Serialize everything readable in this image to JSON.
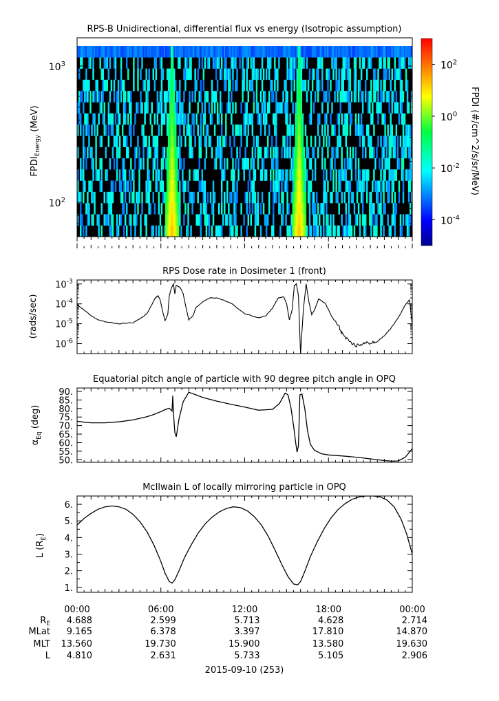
{
  "chart_data": [
    {
      "type": "heatmap",
      "title": "RPS-B  Unidirectional, differential flux vs energy (Isotropic assumption)",
      "ylabel": "FPDI",
      "ylabel_sub": "Energy",
      "ylabel_unit": "(MeV)",
      "yscale": "log",
      "ylim": [
        56,
        1400
      ],
      "yticks": [
        {
          "value": 100,
          "label": "10",
          "exp": "2"
        },
        {
          "value": 1000,
          "label": "10",
          "exp": "3"
        }
      ],
      "xlim": [
        0,
        24
      ],
      "colorbar": {
        "label": "FPDI (#/cm^2/s/sr/MeV)",
        "scale": "log",
        "range": [
          -5,
          3
        ],
        "ticks": [
          {
            "value": 2,
            "label": "10",
            "exp": "2"
          },
          {
            "value": 0,
            "label": "10",
            "exp": "0"
          },
          {
            "value": -2,
            "label": "10",
            "exp": "-2"
          },
          {
            "value": -4,
            "label": "10",
            "exp": "-4"
          }
        ]
      },
      "features": [
        {
          "x_center": 6.8,
          "peak_log_flux": 1.5
        },
        {
          "x_center": 15.9,
          "peak_log_flux": 1.5
        }
      ]
    },
    {
      "type": "line",
      "title": "RPS  Dose rate in Dosimeter 1 (front)",
      "ylabel": "(rads/sec)",
      "yscale": "log",
      "ylim": [
        -6.5,
        -2.8
      ],
      "xlim": [
        0,
        24
      ],
      "yticks": [
        {
          "value": -3,
          "label": "10",
          "exp": "-3"
        },
        {
          "value": -4,
          "label": "10",
          "exp": "-4"
        },
        {
          "value": -5,
          "label": "10",
          "exp": "-5"
        },
        {
          "value": -6,
          "label": "10",
          "exp": "-6"
        }
      ],
      "series": [
        {
          "x": [
            0,
            0.5,
            1,
            1.5,
            2,
            3,
            4,
            4.5,
            5,
            5.3,
            5.6,
            5.8,
            5.95,
            6.1,
            6.3,
            6.5,
            6.6,
            6.75,
            6.9,
            7.0,
            7.1,
            7.4,
            7.6,
            7.8,
            8.0,
            8.3,
            8.5,
            9,
            9.5,
            10,
            11,
            12,
            13,
            13.5,
            14,
            14.4,
            14.8,
            15.0,
            15.2,
            15.4,
            15.55,
            15.7,
            15.85,
            16.0,
            16.2,
            16.4,
            16.6,
            16.8,
            17.0,
            17.3,
            17.8,
            18.2,
            18.7,
            19.0,
            19.5,
            20,
            20.5,
            21,
            21.5,
            22,
            22.5,
            23,
            23.5,
            23.8,
            24
          ],
          "y": [
            -4.05,
            -4.3,
            -4.6,
            -4.8,
            -4.9,
            -5.0,
            -4.95,
            -4.75,
            -4.5,
            -4.1,
            -3.7,
            -3.6,
            -3.8,
            -4.3,
            -4.85,
            -4.5,
            -3.6,
            -3.2,
            -3.0,
            -3.5,
            -3.05,
            -3.2,
            -3.5,
            -4.2,
            -4.8,
            -4.6,
            -4.2,
            -3.9,
            -3.7,
            -3.7,
            -3.95,
            -4.5,
            -4.7,
            -4.6,
            -4.2,
            -3.7,
            -3.65,
            -4.0,
            -4.8,
            -4.3,
            -3.1,
            -3.0,
            -3.6,
            -6.5,
            -4.3,
            -3.0,
            -3.9,
            -4.55,
            -4.3,
            -3.75,
            -4.0,
            -4.6,
            -5.1,
            -5.5,
            -5.95,
            -6.1,
            -6.0,
            -5.95,
            -5.9,
            -5.6,
            -5.2,
            -4.7,
            -4.05,
            -3.8,
            -5.05
          ]
        }
      ]
    },
    {
      "type": "line",
      "title": "Equatorial pitch angle of particle with 90 degree pitch angle in OPQ",
      "ylabel": "α",
      "ylabel_sub": "Eq",
      "ylabel_unit": "(deg)",
      "ylim": [
        48.5,
        92
      ],
      "xlim": [
        0,
        24
      ],
      "yticks": [
        50,
        55,
        60,
        65,
        70,
        75,
        80,
        85,
        90
      ],
      "ytick_labels": [
        "50.",
        "55.",
        "60.",
        "65.",
        "70.",
        "75.",
        "80.",
        "85.",
        "90."
      ],
      "series": [
        {
          "x": [
            0,
            0.5,
            1,
            2,
            3,
            4,
            5,
            5.5,
            6,
            6.3,
            6.5,
            6.6,
            6.7,
            6.8,
            6.85,
            6.9,
            7.0,
            7.1,
            7.3,
            7.6,
            8.0,
            8.5,
            9,
            10,
            11,
            12,
            13,
            14,
            14.5,
            14.9,
            15.1,
            15.3,
            15.5,
            15.65,
            15.75,
            15.85,
            15.95,
            16.1,
            16.3,
            16.5,
            16.7,
            17,
            17.5,
            18,
            19,
            20,
            21,
            22,
            22.5,
            23,
            23.5,
            24
          ],
          "y": [
            72.5,
            72,
            71.6,
            71.6,
            72.2,
            73.3,
            75.2,
            76.5,
            78.2,
            79.3,
            79.9,
            80.1,
            79.4,
            78.5,
            87.5,
            77.5,
            66,
            63.5,
            74,
            84,
            89.5,
            88,
            86.5,
            84.3,
            82.5,
            80.8,
            79,
            79.5,
            83,
            89,
            88,
            81,
            70,
            60,
            54.5,
            58,
            88,
            88.5,
            80,
            67,
            59,
            55.5,
            53.5,
            52.8,
            52.2,
            51.5,
            50.5,
            49.5,
            49.2,
            49.3,
            51.5,
            56.5
          ]
        }
      ]
    },
    {
      "type": "line",
      "title": "McIlwain L of locally mirroring particle in OPQ",
      "ylabel": "L (R",
      "ylabel_sub": "E",
      "ylabel_unit": ")",
      "ylim": [
        0.7,
        6.5
      ],
      "xlim": [
        0,
        24
      ],
      "yticks": [
        1,
        2,
        3,
        4,
        5,
        6
      ],
      "ytick_labels": [
        "1.",
        "2.",
        "3.",
        "4.",
        "5.",
        "6."
      ],
      "series": [
        {
          "x": [
            0,
            0.5,
            1,
            1.5,
            2,
            2.5,
            3,
            3.5,
            4,
            4.5,
            5,
            5.5,
            6,
            6.3,
            6.6,
            6.8,
            7.0,
            7.3,
            7.7,
            8.2,
            8.7,
            9.2,
            9.7,
            10.2,
            10.7,
            11.2,
            11.7,
            12.2,
            12.7,
            13.2,
            13.7,
            14.2,
            14.7,
            15.1,
            15.5,
            15.8,
            16.0,
            16.3,
            16.7,
            17.2,
            17.7,
            18.2,
            18.7,
            19.2,
            19.7,
            20.2,
            20.7,
            21.2,
            21.7,
            22.2,
            22.7,
            23.2,
            23.6,
            24
          ],
          "y": [
            4.75,
            5.15,
            5.45,
            5.7,
            5.85,
            5.9,
            5.85,
            5.7,
            5.4,
            4.95,
            4.35,
            3.55,
            2.55,
            1.85,
            1.35,
            1.25,
            1.45,
            2.0,
            2.8,
            3.6,
            4.3,
            4.85,
            5.25,
            5.55,
            5.75,
            5.85,
            5.8,
            5.6,
            5.25,
            4.75,
            4.05,
            3.2,
            2.3,
            1.65,
            1.2,
            1.15,
            1.35,
            1.95,
            2.85,
            3.75,
            4.55,
            5.2,
            5.7,
            6.05,
            6.3,
            6.45,
            6.5,
            6.5,
            6.45,
            6.25,
            5.85,
            5.1,
            4.2,
            3.0
          ]
        }
      ]
    }
  ],
  "time_axis": {
    "tick_labels": [
      "00:00",
      "06:00",
      "12:00",
      "18:00",
      "00:00"
    ],
    "row_labels": [
      {
        "label": "R",
        "sub": "E",
        "values": [
          "4.688",
          "2.599",
          "5.713",
          "4.628",
          "2.714"
        ]
      },
      {
        "label": "MLat",
        "sub": "",
        "values": [
          "9.165",
          "6.378",
          "3.397",
          "17.810",
          "14.870"
        ]
      },
      {
        "label": "MLT",
        "sub": "",
        "values": [
          "13.560",
          "19.730",
          "15.900",
          "13.580",
          "19.630"
        ]
      },
      {
        "label": "L",
        "sub": "",
        "values": [
          "4.810",
          "2.631",
          "5.733",
          "5.105",
          "2.906"
        ]
      }
    ],
    "date_label": "2015-09-10 (253)"
  }
}
